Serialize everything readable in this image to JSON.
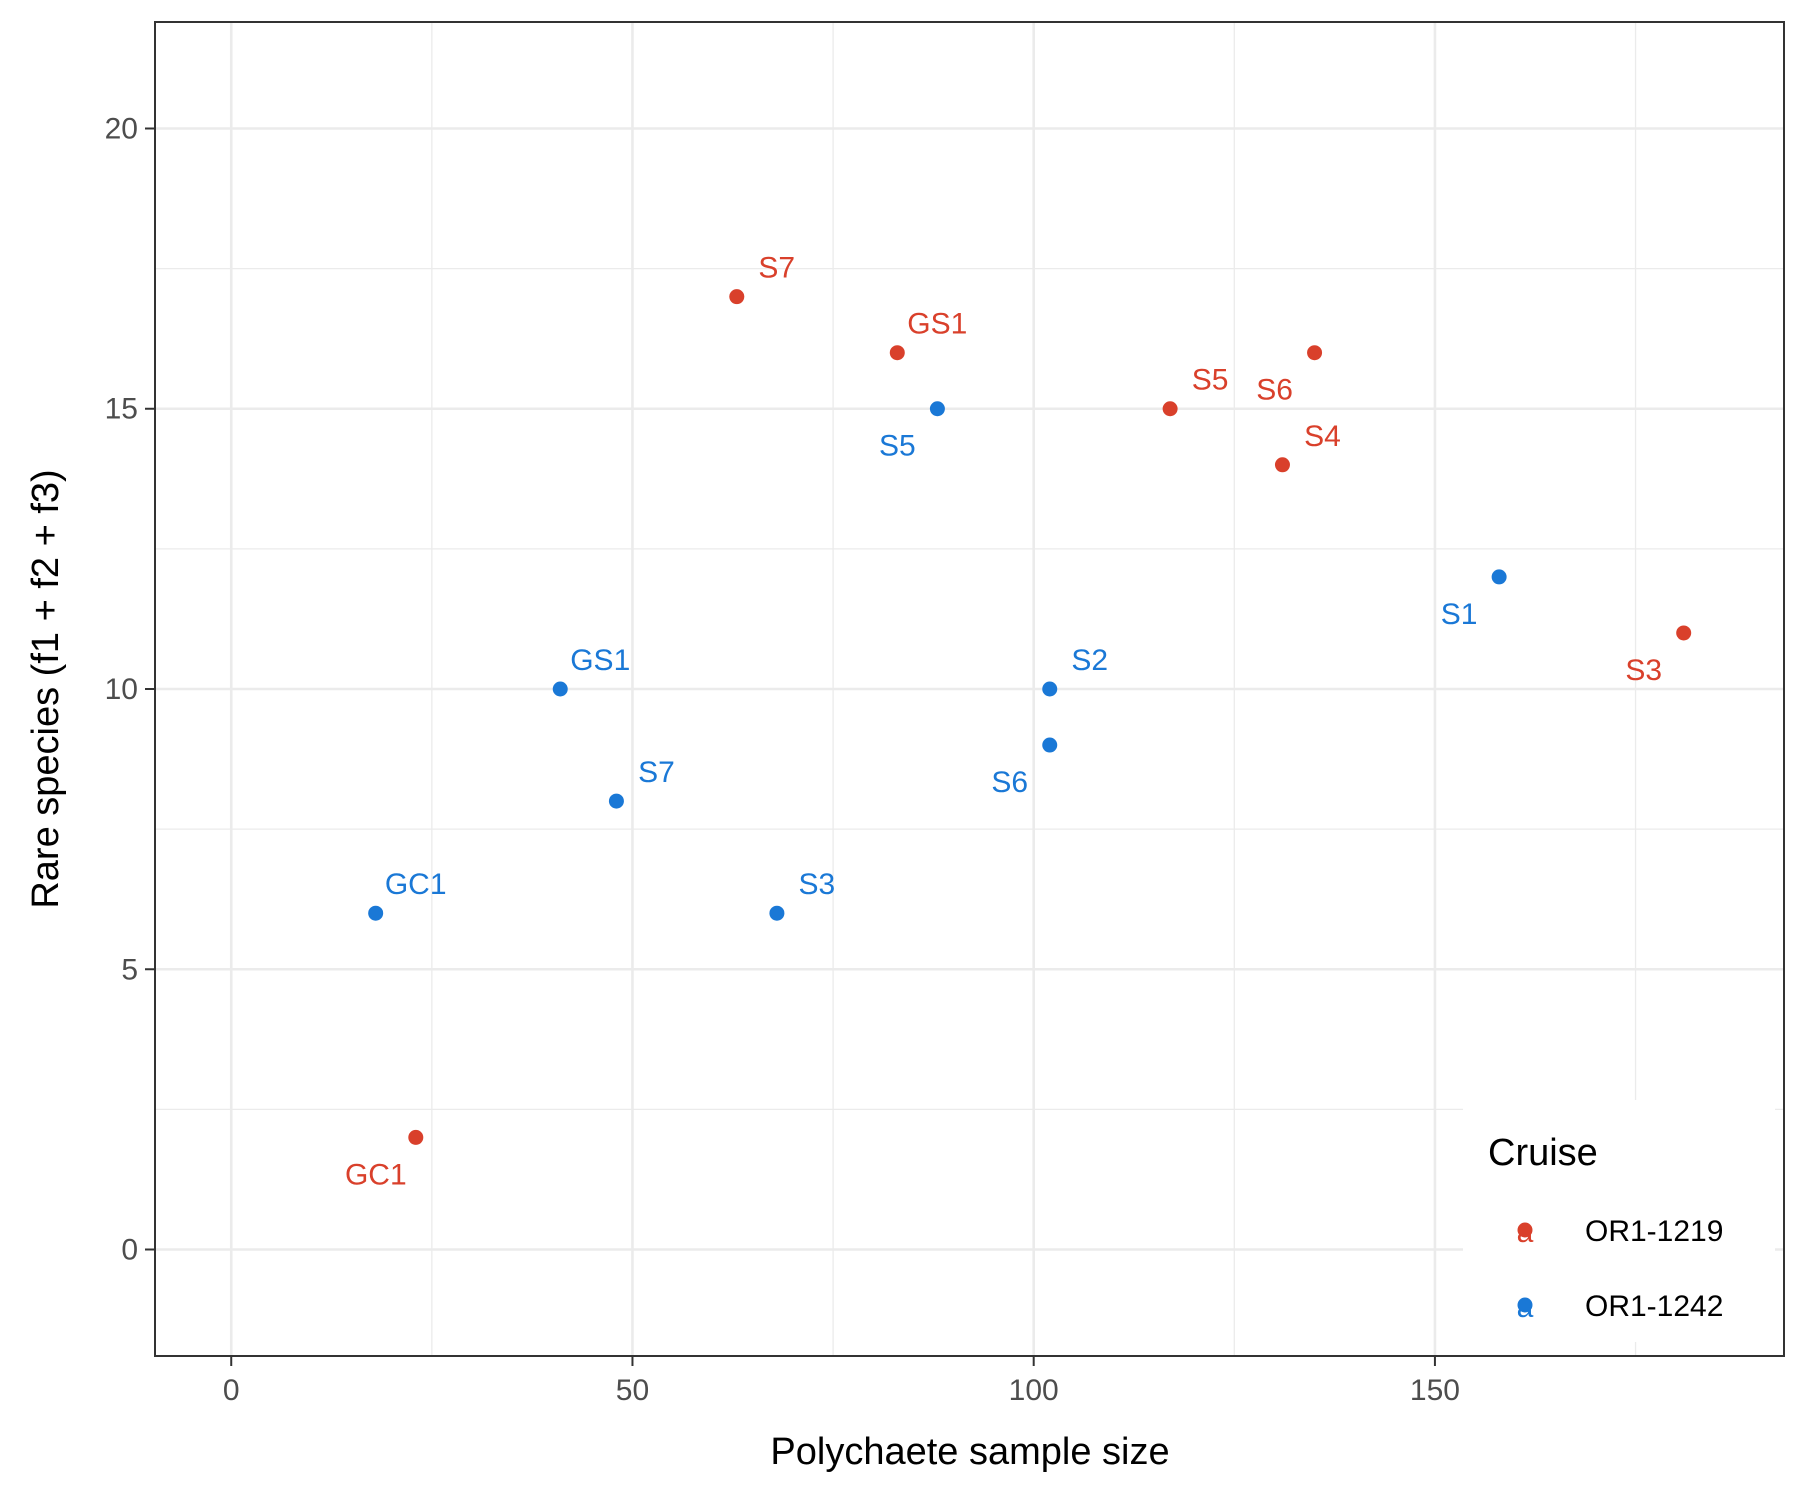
{
  "chart_data": {
    "type": "scatter",
    "title": "",
    "xlabel": "Polychaete sample size",
    "ylabel": "Rare species (f1 + f2 + f3)",
    "xlim": [
      -9.5,
      193.5
    ],
    "ylim": [
      -1.9,
      21.9
    ],
    "x_ticks": [
      0,
      50,
      100,
      150
    ],
    "y_ticks": [
      0,
      5,
      10,
      15,
      20
    ],
    "grid": true,
    "legend": {
      "title": "Cruise",
      "position": "bottom-right",
      "glyph": "a"
    },
    "series": [
      {
        "name": "OR1-1219",
        "color": "#d9402b",
        "points": [
          {
            "x": 63,
            "y": 17,
            "label": "S7"
          },
          {
            "x": 83,
            "y": 16,
            "label": "GS1"
          },
          {
            "x": 117,
            "y": 15,
            "label": "S5"
          },
          {
            "x": 135,
            "y": 16,
            "label": "S6"
          },
          {
            "x": 131,
            "y": 14,
            "label": "S4"
          },
          {
            "x": 181,
            "y": 11,
            "label": "S3"
          },
          {
            "x": 23,
            "y": 2,
            "label": "GC1"
          }
        ]
      },
      {
        "name": "OR1-1242",
        "color": "#1a78d6",
        "points": [
          {
            "x": 88,
            "y": 15,
            "label": "S5"
          },
          {
            "x": 158,
            "y": 12,
            "label": "S1"
          },
          {
            "x": 41,
            "y": 10,
            "label": "GS1"
          },
          {
            "x": 102,
            "y": 10,
            "label": "S2"
          },
          {
            "x": 102,
            "y": 9,
            "label": "S6"
          },
          {
            "x": 48,
            "y": 8,
            "label": "S7"
          },
          {
            "x": 18,
            "y": 6,
            "label": "GC1"
          },
          {
            "x": 68,
            "y": 6,
            "label": "S3"
          }
        ]
      }
    ]
  }
}
